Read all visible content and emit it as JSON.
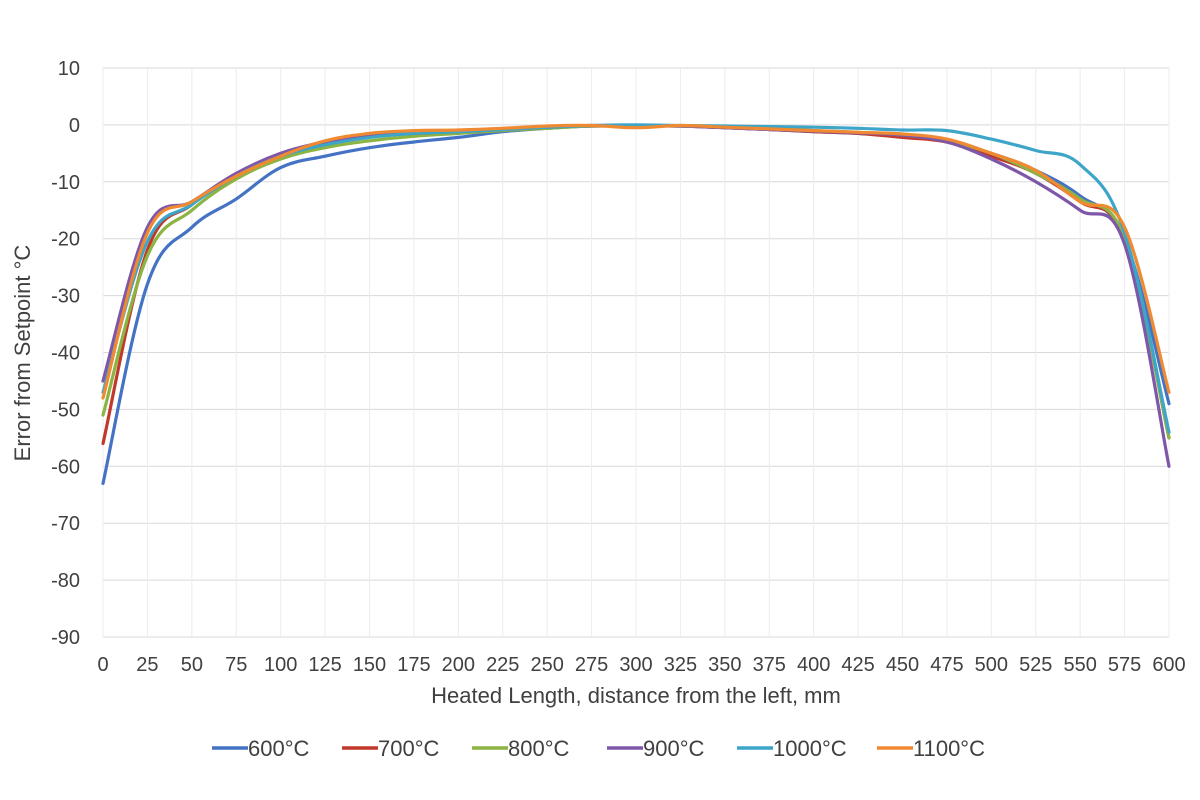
{
  "chart_data": {
    "type": "line",
    "title": "",
    "xlabel": "Heated Length, distance from the left, mm",
    "ylabel": "Error from Setpoint °C",
    "xlim": [
      0,
      600
    ],
    "ylim": [
      -90,
      10
    ],
    "x_ticks": [
      "0",
      "25",
      "50",
      "75",
      "100",
      "125",
      "150",
      "175",
      "200",
      "225",
      "250",
      "275",
      "300",
      "325",
      "350",
      "375",
      "400",
      "425",
      "450",
      "475",
      "500",
      "525",
      "550",
      "575",
      "600"
    ],
    "y_ticks": [
      "10",
      "0",
      "-10",
      "-20",
      "-30",
      "-40",
      "-50",
      "-60",
      "-70",
      "-80",
      "-90"
    ],
    "grid": "horizontal",
    "legend_position": "bottom",
    "x": [
      0,
      25,
      50,
      75,
      100,
      125,
      150,
      175,
      200,
      225,
      250,
      275,
      300,
      325,
      350,
      375,
      400,
      425,
      450,
      475,
      500,
      525,
      550,
      575,
      600
    ],
    "series": [
      {
        "name": "600°C",
        "color": "#4472C4",
        "values": [
          -63,
          -28,
          -18,
          -13,
          -7.5,
          -5.5,
          -4,
          -3,
          -2.2,
          -1.2,
          -0.6,
          -0.2,
          -0.2,
          -0.2,
          -0.5,
          -0.8,
          -1.2,
          -1.5,
          -2,
          -3,
          -5,
          -8,
          -12.5,
          -20,
          -49
        ]
      },
      {
        "name": "700°C",
        "color": "#C0392B",
        "values": [
          -56,
          -22,
          -14,
          -9,
          -5.5,
          -3,
          -2,
          -1.5,
          -1.2,
          -0.8,
          -0.4,
          -0.2,
          -0.2,
          -0.2,
          -0.5,
          -0.8,
          -1.2,
          -1.5,
          -2.2,
          -3,
          -5.5,
          -8.5,
          -13.5,
          -20,
          -55
        ]
      },
      {
        "name": "800°C",
        "color": "#8BB443",
        "values": [
          -51,
          -23,
          -15,
          -9.5,
          -6,
          -4,
          -2.8,
          -2,
          -1.5,
          -1,
          -0.6,
          -0.2,
          -0.2,
          -0.2,
          -0.4,
          -0.6,
          -1,
          -1.3,
          -1.8,
          -2.8,
          -5,
          -8.5,
          -13,
          -20,
          -55
        ]
      },
      {
        "name": "900°C",
        "color": "#7E57A8",
        "values": [
          -45,
          -18,
          -13.5,
          -8.5,
          -5,
          -3,
          -2,
          -1.5,
          -1.2,
          -0.8,
          -0.4,
          -0.1,
          -0.2,
          -0.2,
          -0.5,
          -0.8,
          -1.1,
          -1.4,
          -1.8,
          -3,
          -6,
          -10,
          -15,
          -21,
          -60
        ]
      },
      {
        "name": "1000°C",
        "color": "#3DA5C8",
        "values": [
          -47,
          -20.5,
          -14,
          -9,
          -5.5,
          -3.5,
          -2.2,
          -1.5,
          -1.2,
          -0.8,
          -0.4,
          -0.1,
          0,
          -0.1,
          -0.2,
          -0.3,
          -0.4,
          -0.6,
          -0.9,
          -1,
          -2.5,
          -4.5,
          -7,
          -19,
          -54
        ]
      },
      {
        "name": "1100°C",
        "color": "#F08A32",
        "values": [
          -48,
          -19,
          -13.5,
          -9,
          -5.5,
          -2.8,
          -1.5,
          -1,
          -0.9,
          -0.6,
          -0.2,
          -0.1,
          -0.5,
          -0.1,
          -0.4,
          -0.7,
          -1,
          -1.3,
          -1.6,
          -2.5,
          -5,
          -8,
          -13.5,
          -18,
          -47
        ]
      }
    ]
  }
}
